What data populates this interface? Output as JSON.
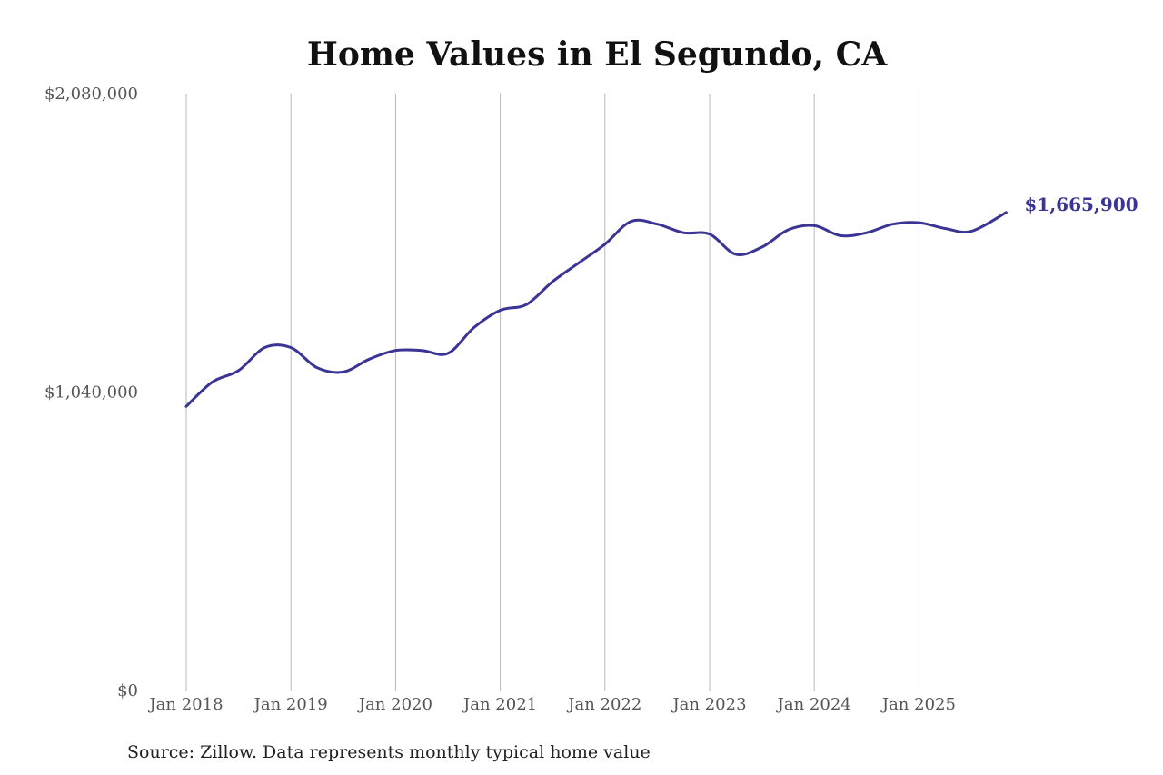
{
  "chart_data": {
    "type": "line",
    "title": "Home Values in El Segundo, CA",
    "xlabel": "",
    "ylabel": "",
    "ylim": [
      0,
      2080000
    ],
    "y_ticks": [
      {
        "value": 0,
        "label": "$0"
      },
      {
        "value": 1040000,
        "label": "$1,040,000"
      },
      {
        "value": 2080000,
        "label": "$2,080,000"
      }
    ],
    "x_ticks": [
      {
        "value": "2018-01",
        "label": "Jan 2018"
      },
      {
        "value": "2019-01",
        "label": "Jan 2019"
      },
      {
        "value": "2020-01",
        "label": "Jan 2020"
      },
      {
        "value": "2021-01",
        "label": "Jan 2021"
      },
      {
        "value": "2022-01",
        "label": "Jan 2022"
      },
      {
        "value": "2023-01",
        "label": "Jan 2023"
      },
      {
        "value": "2024-01",
        "label": "Jan 2024"
      },
      {
        "value": "2025-01",
        "label": "Jan 2025"
      }
    ],
    "grid": "vertical",
    "series": [
      {
        "color": "#3a3494",
        "points": [
          {
            "x": "2018-01",
            "y": 990000
          },
          {
            "x": "2018-04",
            "y": 1075000
          },
          {
            "x": "2018-07",
            "y": 1115000
          },
          {
            "x": "2018-10",
            "y": 1195000
          },
          {
            "x": "2019-01",
            "y": 1195000
          },
          {
            "x": "2019-04",
            "y": 1125000
          },
          {
            "x": "2019-07",
            "y": 1110000
          },
          {
            "x": "2019-10",
            "y": 1155000
          },
          {
            "x": "2020-01",
            "y": 1185000
          },
          {
            "x": "2020-04",
            "y": 1185000
          },
          {
            "x": "2020-07",
            "y": 1175000
          },
          {
            "x": "2020-10",
            "y": 1265000
          },
          {
            "x": "2021-01",
            "y": 1325000
          },
          {
            "x": "2021-04",
            "y": 1345000
          },
          {
            "x": "2021-07",
            "y": 1425000
          },
          {
            "x": "2021-10",
            "y": 1490000
          },
          {
            "x": "2022-01",
            "y": 1555000
          },
          {
            "x": "2022-04",
            "y": 1635000
          },
          {
            "x": "2022-07",
            "y": 1625000
          },
          {
            "x": "2022-10",
            "y": 1595000
          },
          {
            "x": "2023-01",
            "y": 1590000
          },
          {
            "x": "2023-04",
            "y": 1520000
          },
          {
            "x": "2023-07",
            "y": 1545000
          },
          {
            "x": "2023-10",
            "y": 1605000
          },
          {
            "x": "2024-01",
            "y": 1620000
          },
          {
            "x": "2024-04",
            "y": 1585000
          },
          {
            "x": "2024-07",
            "y": 1595000
          },
          {
            "x": "2024-10",
            "y": 1625000
          },
          {
            "x": "2025-01",
            "y": 1630000
          },
          {
            "x": "2025-04",
            "y": 1610000
          },
          {
            "x": "2025-07",
            "y": 1600000
          },
          {
            "x": "2025-11",
            "y": 1665900
          }
        ],
        "end_label": "$1,665,900"
      }
    ],
    "source": "Source: Zillow. Data represents monthly typical home value"
  }
}
